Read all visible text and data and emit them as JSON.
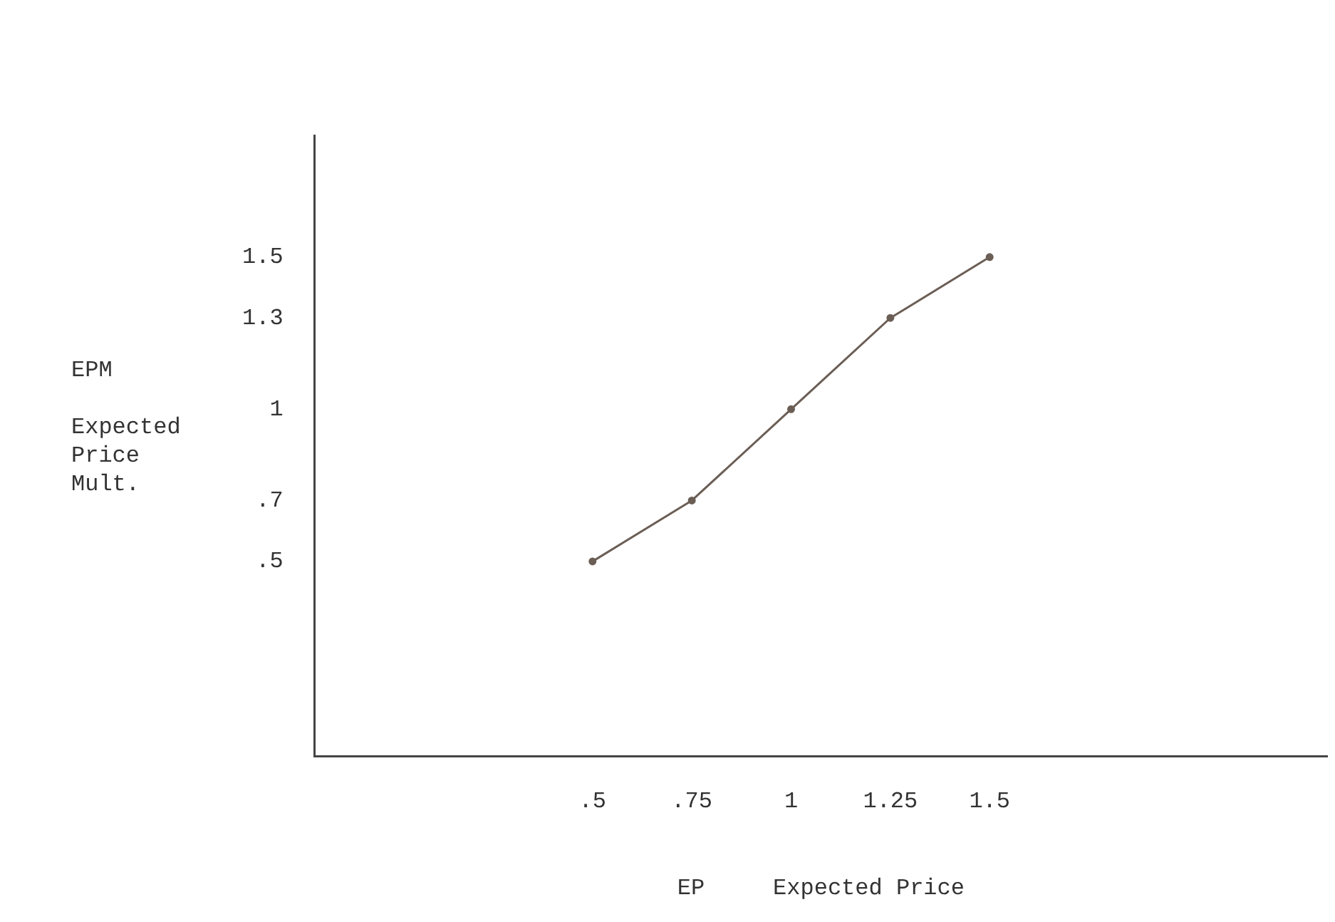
{
  "chart_data": {
    "type": "line",
    "xlabel": "EP     Expected Price",
    "ylabel": "EPM\n\nExpected\nPrice\nMult.",
    "x": [
      0.5,
      0.75,
      1,
      1.25,
      1.5
    ],
    "series": [
      {
        "color": "#6b5e55",
        "values": [
          0.5,
          0.7,
          1,
          1.3,
          1.5
        ]
      }
    ],
    "xlim": [
      -0.2,
      2.35
    ],
    "ylim": [
      -0.14,
      1.9
    ],
    "xticks": [
      {
        "value": 0.5,
        "label": ".5"
      },
      {
        "value": 0.75,
        "label": ".75"
      },
      1,
      1.25,
      1.5
    ],
    "yticks": [
      {
        "value": 0.5,
        "label": ".5"
      },
      {
        "value": 0.7,
        "label": ".7"
      },
      1,
      1.3,
      1.5
    ],
    "grid": false,
    "legend": false,
    "marker": "circle",
    "line_style": "solid"
  }
}
